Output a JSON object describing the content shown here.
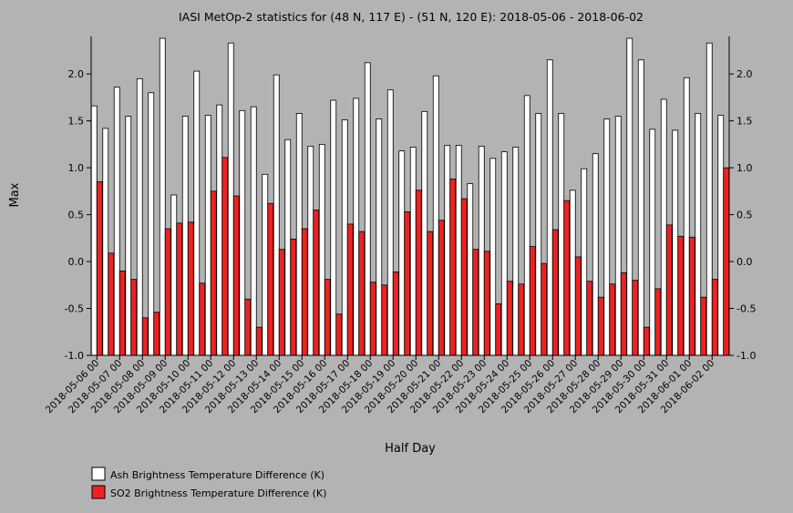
{
  "chart_data": {
    "type": "bar",
    "title": "IASI MetOp-2 statistics for (48 N, 117 E) - (51 N, 120 E): 2018-05-06 - 2018-06-02",
    "xlabel": "Half Day",
    "ylabel": "Max",
    "ylim": [
      -1.0,
      2.4
    ],
    "yticks": [
      -1.0,
      -0.5,
      0.0,
      0.5,
      1.0,
      1.5,
      2.0
    ],
    "ytick_labels": [
      "-1.0",
      "-0.5",
      "0.0",
      "0.5",
      "1.0",
      "1.5",
      "2.0"
    ],
    "grid": false,
    "legend_position": "bottom-left",
    "date_labels": [
      "2018-05-06 00",
      "2018-05-07 00",
      "2018-05-08 00",
      "2018-05-09 00",
      "2018-05-10 00",
      "2018-05-11 00",
      "2018-05-12 00",
      "2018-05-13 00",
      "2018-05-14 00",
      "2018-05-15 00",
      "2018-05-16 00",
      "2018-05-17 00",
      "2018-05-18 00",
      "2018-05-19 00",
      "2018-05-20 00",
      "2018-05-21 00",
      "2018-05-22 00",
      "2018-05-23 00",
      "2018-05-24 00",
      "2018-05-25 00",
      "2018-05-26 00",
      "2018-05-27 00",
      "2018-05-28 00",
      "2018-05-29 00",
      "2018-05-30 00",
      "2018-05-31 00",
      "2018-06-01 00",
      "2018-06-02 00"
    ],
    "series": [
      {
        "name": "Ash Brightness Temperature Difference (K)",
        "color": "#ffffff",
        "values": [
          1.66,
          1.42,
          1.86,
          1.55,
          1.95,
          1.8,
          2.38,
          0.71,
          1.55,
          2.03,
          1.56,
          1.67,
          2.33,
          1.61,
          1.65,
          0.93,
          1.99,
          1.3,
          1.58,
          1.23,
          1.25,
          1.72,
          1.51,
          1.74,
          2.12,
          1.52,
          1.83,
          1.18,
          1.22,
          1.6,
          1.98,
          1.24,
          1.24,
          0.83,
          1.23,
          1.1,
          1.17,
          1.22,
          1.77,
          1.58,
          2.15,
          1.58,
          0.76,
          0.99,
          1.15,
          1.52,
          1.55,
          2.38,
          2.15,
          1.41,
          1.73,
          1.4,
          1.96,
          1.58,
          2.33,
          1.56
        ]
      },
      {
        "name": "SO2 Brightness Temperature Difference (K)",
        "color": "#ee2222",
        "values": [
          0.85,
          0.09,
          -0.1,
          -0.19,
          -0.6,
          -0.54,
          0.35,
          0.41,
          0.42,
          -0.23,
          0.75,
          1.11,
          0.7,
          -0.4,
          -0.7,
          0.62,
          0.13,
          0.24,
          0.35,
          0.55,
          -0.19,
          -0.56,
          0.4,
          0.32,
          -0.22,
          -0.25,
          -0.11,
          0.53,
          0.76,
          0.32,
          0.44,
          0.88,
          0.67,
          0.13,
          0.11,
          -0.45,
          -0.21,
          -0.24,
          0.16,
          -0.02,
          0.34,
          0.65,
          0.05,
          -0.21,
          -0.38,
          -0.24,
          -0.12,
          -0.2,
          -0.7,
          -0.29,
          0.39,
          0.27,
          0.26,
          -0.38,
          -0.19,
          1.0
        ]
      }
    ]
  }
}
